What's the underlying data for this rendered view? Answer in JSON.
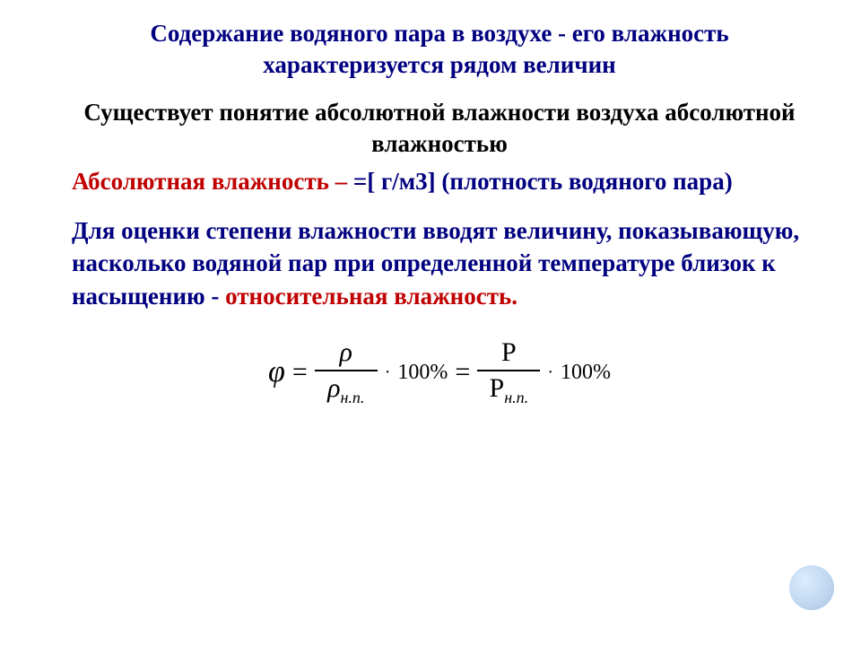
{
  "title": "Содержание водяного пара в воздухе - его влажность характеризуется рядом величин",
  "subtitle": "Существует понятие абсолютной влажности воздуха абсолютной влажностью",
  "abs_label": "Абсолютная влажность – ",
  "abs_formula": "   =[ г/м3] (плотность водяного пара)",
  "rel_text": "Для оценки степени влажности вводят величину, показывающую, насколько водяной пар при определенной  температуре близок к насыщению - ",
  "rel_label": "относительная влажность.",
  "formula": {
    "phi": "φ",
    "eq": "=",
    "rho": "ρ",
    "rho_np": "ρ",
    "np": "н.п.",
    "mult": "·",
    "hundred": "100%",
    "eq2": "=",
    "P": "P",
    "P_np": "P",
    "np2": "н.п.",
    "hundred2": "100%"
  },
  "colors": {
    "title": "#000080",
    "black": "#000000",
    "red": "#c00000",
    "blue": "#000080",
    "bg": "#ffffff"
  },
  "typography": {
    "body_fontsize": 27,
    "formula_fontsize": 30,
    "font_family": "Georgia, Times New Roman, serif"
  }
}
